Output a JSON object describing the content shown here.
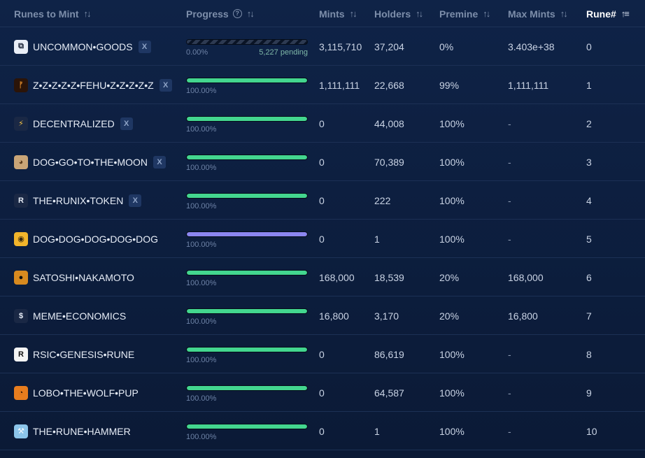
{
  "columns": [
    {
      "label": "Runes to Mint"
    },
    {
      "label": "Progress"
    },
    {
      "label": "Mints"
    },
    {
      "label": "Holders"
    },
    {
      "label": "Premine"
    },
    {
      "label": "Max Mints"
    },
    {
      "label": "Rune#"
    }
  ],
  "rows": [
    {
      "name": "UNCOMMON•GOODS",
      "icon": "uncommon-goods-icon",
      "x": "X",
      "progress": 0,
      "pct": "0.00%",
      "pending": "5,227 pending",
      "mints": "3,115,710",
      "holders": "37,204",
      "premine": "0%",
      "max_mints": "3.403e+38",
      "rune": "0"
    },
    {
      "name": "Z•Z•Z•Z•Z•FEHU•Z•Z•Z•Z•Z",
      "icon": "fehu-icon",
      "x": "X",
      "progress": 1,
      "pct": "100.00%",
      "pending": "",
      "mints": "1,111,111",
      "holders": "22,668",
      "premine": "99%",
      "max_mints": "1,111,111",
      "rune": "1"
    },
    {
      "name": "DECENTRALIZED",
      "icon": "lightning-icon",
      "x": "X",
      "progress": 1,
      "pct": "100.00%",
      "pending": "",
      "mints": "0",
      "holders": "44,008",
      "premine": "100%",
      "max_mints": "-",
      "rune": "2"
    },
    {
      "name": "DOG•GO•TO•THE•MOON",
      "icon": "dog-icon",
      "x": "X",
      "progress": 1,
      "pct": "100.00%",
      "pending": "",
      "mints": "0",
      "holders": "70,389",
      "premine": "100%",
      "max_mints": "-",
      "rune": "3"
    },
    {
      "name": "THE•RUNIX•TOKEN",
      "icon": "runix-icon",
      "x": "X",
      "progress": 1,
      "pct": "100.00%",
      "pending": "",
      "mints": "0",
      "holders": "222",
      "premine": "100%",
      "max_mints": "-",
      "rune": "4"
    },
    {
      "name": "DOG•DOG•DOG•DOG•DOG",
      "icon": "dog-yellow-icon",
      "x": "",
      "progress": 1,
      "pct": "100.00%",
      "pending": "",
      "mints": "0",
      "holders": "1",
      "premine": "100%",
      "max_mints": "-",
      "rune": "5"
    },
    {
      "name": "SATOSHI•NAKAMOTO",
      "icon": "satoshi-icon",
      "x": "",
      "progress": 1,
      "pct": "100.00%",
      "pending": "",
      "mints": "168,000",
      "holders": "18,539",
      "premine": "20%",
      "max_mints": "168,000",
      "rune": "6"
    },
    {
      "name": "MEME•ECONOMICS",
      "icon": "dollar-icon",
      "x": "",
      "progress": 1,
      "pct": "100.00%",
      "pending": "",
      "mints": "16,800",
      "holders": "3,170",
      "premine": "20%",
      "max_mints": "16,800",
      "rune": "7"
    },
    {
      "name": "RSIC•GENESIS•RUNE",
      "icon": "rsic-icon",
      "x": "",
      "progress": 1,
      "pct": "100.00%",
      "pending": "",
      "mints": "0",
      "holders": "86,619",
      "premine": "100%",
      "max_mints": "-",
      "rune": "8"
    },
    {
      "name": "LOBO•THE•WOLF•PUP",
      "icon": "wolf-icon",
      "x": "",
      "progress": 1,
      "pct": "100.00%",
      "pending": "",
      "mints": "0",
      "holders": "64,587",
      "premine": "100%",
      "max_mints": "-",
      "rune": "9"
    },
    {
      "name": "THE•RUNE•HAMMER",
      "icon": "hammer-icon",
      "x": "",
      "progress": 1,
      "pct": "100.00%",
      "pending": "",
      "mints": "0",
      "holders": "1",
      "premine": "100%",
      "max_mints": "-",
      "rune": "10"
    }
  ],
  "colors": {
    "progress_green": "#43d68f",
    "progress_purple": "#8b86f0",
    "background": "#0d1f40"
  }
}
